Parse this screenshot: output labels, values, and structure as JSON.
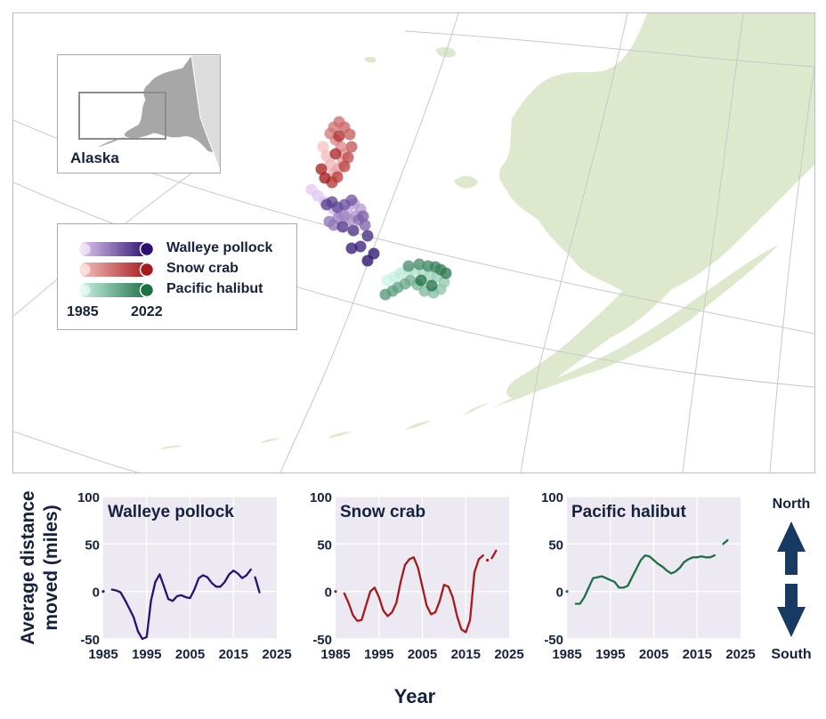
{
  "map": {
    "inset_label": "Alaska",
    "colors": {
      "land": "#dde8cc",
      "graticule": "#c8c8c8",
      "inset_land": "#a7a7a7",
      "inset_other": "#dcdcdc"
    }
  },
  "legend": {
    "items": [
      {
        "label": "Walleye pollock",
        "color_start": "#e6ccf2",
        "color_end": "#2a1070"
      },
      {
        "label": "Snow crab",
        "color_start": "#f7c3c3",
        "color_end": "#a51a1a"
      },
      {
        "label": "Pacific halibut",
        "color_start": "#ccf5e8",
        "color_end": "#1f6f45"
      }
    ],
    "year_start": "1985",
    "year_end": "2022"
  },
  "y_axis_title": "Average distance moved (miles)",
  "x_axis_title": "Year",
  "direction": {
    "north_label": "North",
    "south_label": "South",
    "arrow_color": "#173a63"
  },
  "chart_data": [
    {
      "type": "line",
      "title": "Walleye pollock",
      "color": "#2a1070",
      "xlim": [
        1985,
        2025
      ],
      "ylim": [
        -50,
        100
      ],
      "x_ticks": [
        1985,
        1995,
        2005,
        2015,
        2025
      ],
      "y_ticks": [
        -50,
        0,
        50,
        100
      ],
      "segments": [
        {
          "x": [
            1985
          ],
          "y": [
            0
          ]
        },
        {
          "x": [
            1987,
            1988,
            1989,
            1990,
            1991,
            1992,
            1993,
            1994,
            1995,
            1996,
            1997,
            1998,
            1999,
            2000,
            2001,
            2002,
            2003,
            2004,
            2005,
            2006,
            2007,
            2008,
            2009,
            2010,
            2011,
            2012,
            2013,
            2014,
            2015,
            2016,
            2017,
            2018,
            2019
          ],
          "y": [
            2,
            1,
            -1,
            -9,
            -18,
            -27,
            -42,
            -50,
            -48,
            -10,
            10,
            18,
            5,
            -8,
            -10,
            -5,
            -4,
            -6,
            -7,
            2,
            14,
            17,
            15,
            9,
            5,
            5,
            10,
            18,
            22,
            19,
            14,
            17,
            23
          ]
        },
        {
          "x": [
            2020,
            2021
          ],
          "y": [
            15,
            -1
          ]
        }
      ]
    },
    {
      "type": "line",
      "title": "Snow crab",
      "color": "#a51a1a",
      "xlim": [
        1985,
        2025
      ],
      "ylim": [
        -50,
        100
      ],
      "x_ticks": [
        1985,
        1995,
        2005,
        2015,
        2025
      ],
      "y_ticks": [
        -50,
        0,
        50,
        100
      ],
      "segments": [
        {
          "x": [
            1985
          ],
          "y": [
            0
          ]
        },
        {
          "x": [
            1987,
            1988,
            1989,
            1990,
            1991,
            1992,
            1993,
            1994,
            1995,
            1996,
            1997,
            1998,
            1999,
            2000,
            2001,
            2002,
            2003,
            2004,
            2005,
            2006,
            2007,
            2008,
            2009,
            2010,
            2011,
            2012,
            2013,
            2014,
            2015,
            2016,
            2017,
            2018,
            2019
          ],
          "y": [
            -2,
            -12,
            -25,
            -31,
            -30,
            -15,
            0,
            4,
            -6,
            -20,
            -26,
            -22,
            -12,
            10,
            28,
            34,
            36,
            25,
            5,
            -15,
            -24,
            -22,
            -10,
            7,
            5,
            -6,
            -26,
            -40,
            -43,
            -30,
            20,
            34,
            38
          ]
        },
        {
          "x": [
            2020
          ],
          "y": [
            33
          ]
        },
        {
          "x": [
            2021,
            2022
          ],
          "y": [
            35,
            43
          ]
        }
      ]
    },
    {
      "type": "line",
      "title": "Pacific halibut",
      "color": "#1f6f45",
      "xlim": [
        1985,
        2025
      ],
      "ylim": [
        -50,
        100
      ],
      "x_ticks": [
        1985,
        1995,
        2005,
        2015,
        2025
      ],
      "y_ticks": [
        -50,
        0,
        50,
        100
      ],
      "segments": [
        {
          "x": [
            1985
          ],
          "y": [
            0
          ]
        },
        {
          "x": [
            1987,
            1988,
            1989,
            1990,
            1991,
            1992,
            1993,
            1994,
            1995,
            1996,
            1997,
            1998,
            1999,
            2000,
            2001,
            2002,
            2003,
            2004,
            2005,
            2006,
            2007,
            2008,
            2009,
            2010,
            2011,
            2012,
            2013,
            2014,
            2015,
            2016,
            2017,
            2018,
            2019
          ],
          "y": [
            -13,
            -13,
            -6,
            4,
            14,
            15,
            16,
            14,
            12,
            10,
            4,
            4,
            6,
            15,
            24,
            33,
            38,
            37,
            33,
            29,
            26,
            22,
            19,
            21,
            25,
            31,
            34,
            36,
            36,
            37,
            36,
            36,
            38
          ]
        },
        {
          "x": [
            2021,
            2022
          ],
          "y": [
            50,
            54
          ]
        }
      ]
    }
  ]
}
